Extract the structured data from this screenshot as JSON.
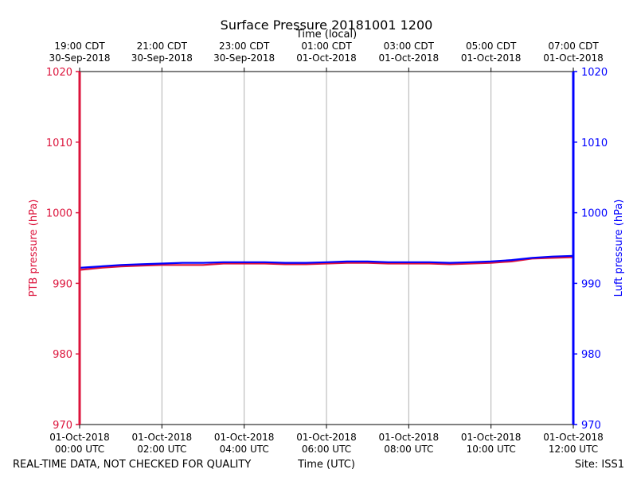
{
  "chart_data": {
    "type": "line",
    "title": "Surface Pressure 20181001 1200",
    "xlabel": "Time (UTC)",
    "x2label": "Time (local)",
    "ylabel_left": "PTB pressure (hPa)",
    "ylabel_right": "Luft pressure (hPa)",
    "ylim": [
      970,
      1020
    ],
    "yticks": [
      970,
      980,
      990,
      1000,
      1010,
      1020
    ],
    "xlim_hours": [
      0,
      12
    ],
    "xticks_utc": [
      {
        "hour": 0,
        "date": "01-Oct-2018",
        "time": "00:00 UTC"
      },
      {
        "hour": 2,
        "date": "01-Oct-2018",
        "time": "02:00 UTC"
      },
      {
        "hour": 4,
        "date": "01-Oct-2018",
        "time": "04:00 UTC"
      },
      {
        "hour": 6,
        "date": "01-Oct-2018",
        "time": "06:00 UTC"
      },
      {
        "hour": 8,
        "date": "01-Oct-2018",
        "time": "08:00 UTC"
      },
      {
        "hour": 10,
        "date": "01-Oct-2018",
        "time": "10:00 UTC"
      },
      {
        "hour": 12,
        "date": "01-Oct-2018",
        "time": "12:00 UTC"
      }
    ],
    "xticks_local": [
      {
        "hour": 0,
        "time": "19:00 CDT",
        "date": "30-Sep-2018"
      },
      {
        "hour": 2,
        "time": "21:00 CDT",
        "date": "30-Sep-2018"
      },
      {
        "hour": 4,
        "time": "23:00 CDT",
        "date": "30-Sep-2018"
      },
      {
        "hour": 6,
        "time": "01:00 CDT",
        "date": "01-Oct-2018"
      },
      {
        "hour": 8,
        "time": "03:00 CDT",
        "date": "01-Oct-2018"
      },
      {
        "hour": 10,
        "time": "05:00 CDT",
        "date": "01-Oct-2018"
      },
      {
        "hour": 12,
        "time": "07:00 CDT",
        "date": "01-Oct-2018"
      }
    ],
    "grid": "vertical",
    "series": [
      {
        "name": "PTB pressure",
        "color": "#dc143c",
        "x": [
          0,
          0.5,
          1,
          1.5,
          2,
          2.5,
          3,
          3.5,
          4,
          4.5,
          5,
          5.5,
          6,
          6.5,
          7,
          7.5,
          8,
          8.5,
          9,
          9.5,
          10,
          10.5,
          11,
          11.5,
          12
        ],
        "values": [
          991.9,
          992.2,
          992.4,
          992.5,
          992.6,
          992.6,
          992.6,
          992.8,
          992.8,
          992.8,
          992.7,
          992.7,
          992.8,
          992.9,
          992.9,
          992.8,
          992.8,
          992.8,
          992.7,
          992.8,
          992.9,
          993.1,
          993.5,
          993.6,
          993.7
        ]
      },
      {
        "name": "Luft pressure",
        "color": "#0000ff",
        "x": [
          0,
          0.5,
          1,
          1.5,
          2,
          2.5,
          3,
          3.5,
          4,
          4.5,
          5,
          5.5,
          6,
          6.5,
          7,
          7.5,
          8,
          8.5,
          9,
          9.5,
          10,
          10.5,
          11,
          11.5,
          12
        ],
        "values": [
          992.2,
          992.4,
          992.6,
          992.7,
          992.8,
          992.9,
          992.9,
          993.0,
          993.0,
          993.0,
          992.9,
          992.9,
          993.0,
          993.1,
          993.1,
          993.0,
          993.0,
          993.0,
          992.9,
          993.0,
          993.1,
          993.3,
          993.6,
          993.8,
          993.9
        ]
      }
    ]
  },
  "footer": {
    "disclaimer": "REAL-TIME DATA, NOT CHECKED FOR QUALITY",
    "site": "Site: ISS1"
  },
  "colors": {
    "left_axis": "#dc143c",
    "right_axis": "#0000ff",
    "grid": "#b0b0b0"
  }
}
